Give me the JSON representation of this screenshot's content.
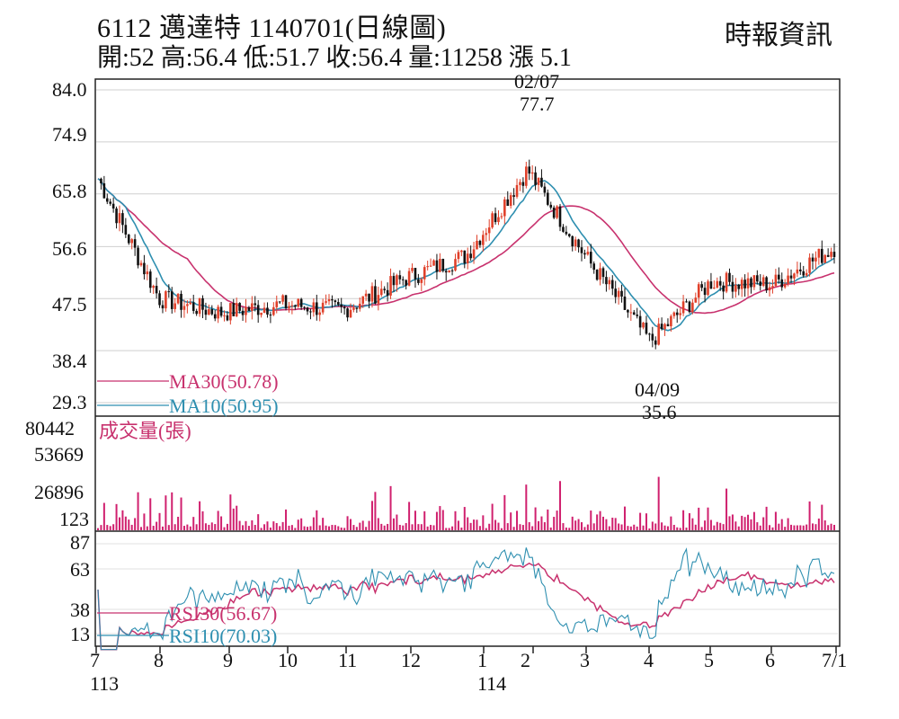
{
  "header": {
    "title": "6112  邁達特 1140701(日線圖)",
    "source": "時報資訊",
    "quote": "開:52 高:56.4 低:51.7 收:56.4 量:11258 漲 5.1"
  },
  "chart_data": [
    {
      "type": "candlestick",
      "title": "6112  邁達特 1140701(日線圖)",
      "ylim": [
        29.3,
        84.0
      ],
      "yticks": [
        "84.0",
        "74.9",
        "65.8",
        "56.6",
        "47.5",
        "38.4",
        "29.3"
      ],
      "xticks": [
        "7",
        "8",
        "9",
        "10",
        "11",
        "12",
        "1",
        "2",
        "3",
        "4",
        "5",
        "6",
        "7/1"
      ],
      "year_labels": [
        "113",
        "114"
      ],
      "annotations": [
        {
          "date": "02/07",
          "value": "77.7"
        },
        {
          "date": "04/09",
          "value": "35.6"
        }
      ],
      "legend": [
        {
          "label": "MA30(50.78)",
          "color": "#c8326e"
        },
        {
          "label": "MA10(50.95)",
          "color": "#2e8fb0"
        }
      ],
      "colors": {
        "up": "#e0402a",
        "down": "#111111"
      },
      "monthly_closes": [
        {
          "month": "7",
          "value": 68.5
        },
        {
          "month": "8",
          "value": 47.5
        },
        {
          "month": "9",
          "value": 45.0
        },
        {
          "month": "10",
          "value": 46.5
        },
        {
          "month": "11",
          "value": 45.5
        },
        {
          "month": "12",
          "value": 51.0
        },
        {
          "month": "1",
          "value": 55.0
        },
        {
          "month": "2",
          "value": 70.0
        },
        {
          "month": "3",
          "value": 54.0
        },
        {
          "month": "4",
          "value": 40.0
        },
        {
          "month": "5",
          "value": 50.5
        },
        {
          "month": "6",
          "value": 50.0
        },
        {
          "month": "7/1",
          "value": 56.4
        }
      ]
    },
    {
      "type": "bar",
      "title": "成交量(張)",
      "yticks": [
        "80442",
        "53669",
        "26896",
        "123"
      ],
      "color": "#d0206e"
    },
    {
      "type": "line",
      "yticks": [
        "87",
        "63",
        "38",
        "13"
      ],
      "legend": [
        {
          "label": "RSI30(56.67)",
          "color": "#c8326e"
        },
        {
          "label": "RSI10(70.03)",
          "color": "#2e8fb0"
        }
      ]
    }
  ]
}
